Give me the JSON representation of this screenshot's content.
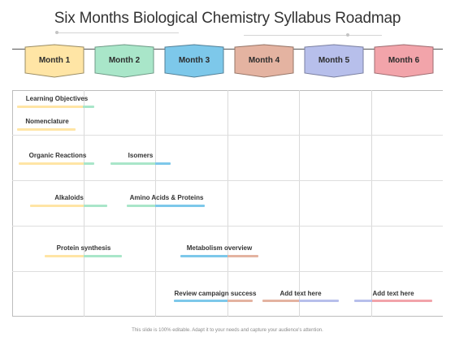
{
  "title": "Six Months Biological Chemistry Syllabus Roadmap",
  "months": [
    {
      "label": "Month 1",
      "color": "#FFE5A5",
      "border": "#9A8C63"
    },
    {
      "label": "Month 2",
      "color": "#A9E6C9",
      "border": "#6E9A86"
    },
    {
      "label": "Month 3",
      "color": "#7DC8EA",
      "border": "#527F96"
    },
    {
      "label": "Month 4",
      "color": "#E4B3A1",
      "border": "#957466"
    },
    {
      "label": "Month 5",
      "color": "#B7BFEB",
      "border": "#7A7FA0"
    },
    {
      "label": "Month 6",
      "color": "#F2A4AA",
      "border": "#9E6B70"
    }
  ],
  "tasks": {
    "learning_objectives": "Learning Objectives",
    "nomenclature": "Nomenclature",
    "organic_reactions": "Organic Reactions",
    "isomers": "Isomers",
    "alkaloids": "Alkaloids",
    "amino_acids_proteins": "Amino Acids & Proteins",
    "protein_synthesis": "Protein synthesis",
    "metabolism_overview": "Metabolism overview",
    "review_campaign_success": "Review campaign success",
    "add_text_1": "Add text here",
    "add_text_2": "Add text here"
  },
  "footer": "This slide is 100% editable. Adapt it to your needs and capture your audience's attention."
}
